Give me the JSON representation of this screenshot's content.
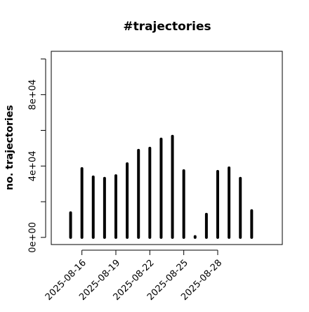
{
  "chart_data": {
    "type": "bar",
    "title": "#trajectories",
    "y_label": "no. trajectories",
    "x": [
      "2025-08-15",
      "2025-08-16",
      "2025-08-17",
      "2025-08-18",
      "2025-08-19",
      "2025-08-20",
      "2025-08-21",
      "2025-08-22",
      "2025-08-23",
      "2025-08-24",
      "2025-08-25",
      "2025-08-26",
      "2025-08-27",
      "2025-08-28",
      "2025-08-29",
      "2025-08-30",
      "2025-08-31"
    ],
    "values": [
      13800,
      38600,
      33900,
      33100,
      34600,
      41300,
      48800,
      50000,
      55100,
      56700,
      37400,
      500,
      13000,
      37000,
      39000,
      33100,
      15000
    ],
    "color": "#000000",
    "xlim": [
      "2025-08-13T07:00",
      "2025-09-02T17:00"
    ],
    "xticks": [
      "2025-08-16",
      "2025-08-19",
      "2025-08-22",
      "2025-08-25",
      "2025-08-28"
    ],
    "ylim": [
      -4000,
      104300
    ],
    "yticks": [
      {
        "value": 0,
        "label": "0e+00"
      },
      {
        "value": 40000,
        "label": "4e+04"
      },
      {
        "value": 80000,
        "label": "8e+04"
      }
    ],
    "yminor_ticks": [
      20000,
      60000,
      100000
    ]
  }
}
